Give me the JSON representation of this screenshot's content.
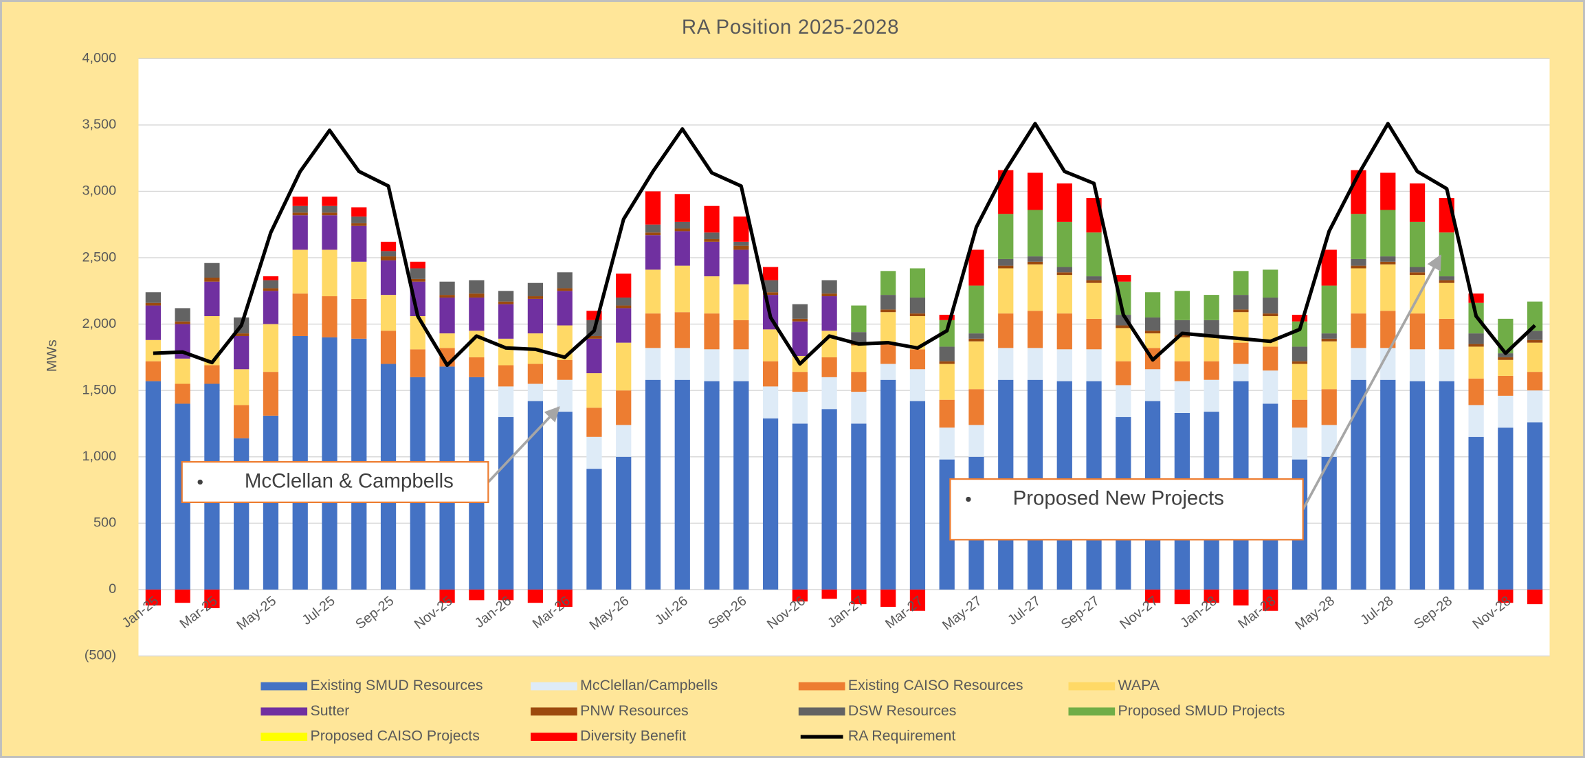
{
  "chart_data": {
    "type": "stacked_bar",
    "title": "RA Position 2025-2028",
    "y_label": "MWs",
    "categories": [
      "Jan-25",
      null,
      "Mar-25",
      null,
      "May-25",
      null,
      "Jul-25",
      null,
      "Sep-25",
      null,
      "Nov-25",
      null,
      "Jan-26",
      null,
      "Mar-26",
      null,
      "May-26",
      null,
      "Jul-26",
      null,
      "Sep-26",
      null,
      "Nov-26",
      null,
      "Jan-27",
      null,
      "Mar-27",
      null,
      "May-27",
      null,
      "Jul-27",
      null,
      "Sep-27",
      null,
      "Nov-27",
      null,
      "Jan-28",
      null,
      "Mar-28",
      null,
      "May-28",
      null,
      "Jul-28",
      null,
      "Sep-28",
      null,
      "Nov-28",
      null
    ],
    "ylim": [
      -500,
      4000
    ],
    "yticks": [
      {
        "value": -500,
        "label": "(500)"
      },
      0,
      500,
      {
        "value": 1000,
        "label": "1,000"
      },
      {
        "value": 1500,
        "label": "1,500"
      },
      {
        "value": 2000,
        "label": "2,000"
      },
      {
        "value": 2500,
        "label": "2,500"
      },
      {
        "value": 3000,
        "label": "3,000"
      },
      {
        "value": 3500,
        "label": "3,500"
      },
      {
        "value": 4000,
        "label": "4,000"
      }
    ],
    "grid": true,
    "legend": "bottom",
    "series": [
      {
        "name": "Existing SMUD Resources",
        "color": "#4472c4",
        "values": [
          1570,
          1400,
          1550,
          1140,
          1310,
          1910,
          1900,
          1890,
          1700,
          1600,
          1680,
          1600,
          1300,
          1420,
          1340,
          910,
          1000,
          1580,
          1580,
          1570,
          1570,
          1290,
          1250,
          1360,
          1250,
          1580,
          1420,
          980,
          1000,
          1580,
          1580,
          1570,
          1570,
          1300,
          1420,
          1330,
          1340,
          1570,
          1400,
          980,
          1000,
          1580,
          1580,
          1570,
          1570,
          1150,
          1220,
          1260
        ]
      },
      {
        "name": "McClellan/Campbells",
        "color": "#deebf7",
        "values": [
          0,
          0,
          0,
          0,
          0,
          0,
          0,
          0,
          0,
          0,
          0,
          0,
          230,
          130,
          240,
          240,
          240,
          240,
          240,
          240,
          240,
          240,
          240,
          240,
          240,
          120,
          240,
          240,
          240,
          240,
          240,
          240,
          240,
          240,
          240,
          240,
          240,
          130,
          250,
          240,
          240,
          240,
          240,
          240,
          240,
          240,
          240,
          240
        ]
      },
      {
        "name": "Existing CAISO Resources",
        "color": "#ed7d31",
        "values": [
          150,
          150,
          140,
          250,
          330,
          320,
          310,
          300,
          250,
          210,
          140,
          150,
          160,
          150,
          150,
          220,
          260,
          260,
          270,
          270,
          220,
          190,
          150,
          150,
          150,
          160,
          150,
          210,
          270,
          260,
          280,
          270,
          230,
          180,
          160,
          150,
          140,
          160,
          180,
          210,
          270,
          260,
          280,
          270,
          230,
          200,
          150,
          140
        ]
      },
      {
        "name": "WAPA",
        "color": "#ffd966",
        "values": [
          160,
          190,
          370,
          270,
          360,
          330,
          350,
          280,
          270,
          250,
          110,
          200,
          200,
          230,
          260,
          260,
          360,
          330,
          350,
          280,
          270,
          240,
          120,
          200,
          200,
          230,
          250,
          270,
          360,
          340,
          350,
          290,
          270,
          250,
          110,
          180,
          180,
          230,
          230,
          270,
          360,
          340,
          350,
          290,
          270,
          240,
          120,
          220
        ]
      },
      {
        "name": "Sutter",
        "color": "#7030a0",
        "values": [
          260,
          260,
          260,
          250,
          250,
          260,
          260,
          270,
          260,
          260,
          270,
          250,
          260,
          260,
          260,
          260,
          260,
          260,
          260,
          260,
          260,
          260,
          260,
          260,
          0,
          0,
          0,
          0,
          0,
          0,
          0,
          0,
          0,
          0,
          0,
          0,
          0,
          0,
          0,
          0,
          0,
          0,
          0,
          0,
          0,
          0,
          0,
          0
        ]
      },
      {
        "name": "PNW Resources",
        "color": "#9c4a0e",
        "values": [
          20,
          20,
          30,
          20,
          20,
          20,
          20,
          20,
          30,
          20,
          20,
          30,
          20,
          20,
          20,
          20,
          20,
          20,
          20,
          20,
          30,
          20,
          20,
          20,
          20,
          20,
          20,
          20,
          20,
          20,
          20,
          20,
          20,
          20,
          20,
          20,
          20,
          20,
          20,
          20,
          20,
          20,
          20,
          20,
          20,
          20,
          20,
          20
        ]
      },
      {
        "name": "DSW Resources",
        "color": "#636363",
        "values": [
          80,
          100,
          110,
          120,
          60,
          50,
          50,
          50,
          40,
          80,
          100,
          100,
          80,
          100,
          120,
          120,
          60,
          60,
          50,
          50,
          30,
          90,
          110,
          100,
          80,
          110,
          120,
          110,
          40,
          50,
          40,
          40,
          30,
          80,
          100,
          110,
          110,
          110,
          120,
          110,
          40,
          50,
          40,
          40,
          30,
          80,
          30,
          70
        ]
      },
      {
        "name": "Proposed SMUD Projects",
        "color": "#70ad47",
        "values": [
          0,
          0,
          0,
          0,
          0,
          0,
          0,
          0,
          0,
          0,
          0,
          0,
          0,
          0,
          0,
          0,
          0,
          0,
          0,
          0,
          0,
          0,
          0,
          0,
          200,
          180,
          220,
          200,
          360,
          340,
          350,
          340,
          330,
          250,
          190,
          220,
          190,
          180,
          210,
          190,
          360,
          340,
          350,
          340,
          330,
          230,
          260,
          220
        ]
      },
      {
        "name": "Proposed CAISO Projects",
        "color": "#ffff00",
        "values": [
          0,
          0,
          0,
          0,
          0,
          0,
          0,
          0,
          0,
          0,
          0,
          0,
          0,
          0,
          0,
          0,
          0,
          0,
          0,
          0,
          0,
          0,
          0,
          0,
          0,
          0,
          0,
          0,
          0,
          0,
          0,
          0,
          0,
          0,
          0,
          0,
          0,
          0,
          0,
          0,
          0,
          0,
          0,
          0,
          0,
          0,
          0,
          0
        ]
      },
      {
        "name": "Diversity Benefit",
        "color": "#ff0000",
        "values": [
          -120,
          -100,
          -140,
          0,
          30,
          70,
          70,
          70,
          70,
          50,
          -100,
          -80,
          -80,
          -100,
          -130,
          70,
          180,
          250,
          210,
          200,
          190,
          100,
          -90,
          -70,
          -110,
          -130,
          -160,
          40,
          270,
          330,
          280,
          290,
          260,
          50,
          -100,
          -110,
          -100,
          -120,
          -160,
          50,
          270,
          330,
          280,
          290,
          260,
          70,
          -100,
          -110
        ]
      },
      {
        "name": "RA Requirement",
        "color": "#000000",
        "type": "line",
        "values": [
          1780,
          1790,
          1710,
          1990,
          2690,
          3150,
          3460,
          3150,
          3040,
          2060,
          1690,
          1910,
          1820,
          1810,
          1750,
          1950,
          2790,
          3150,
          3470,
          3140,
          3040,
          2050,
          1700,
          1910,
          1850,
          1860,
          1820,
          1950,
          2730,
          3160,
          3510,
          3150,
          3060,
          2070,
          1730,
          1930,
          1910,
          1890,
          1870,
          1960,
          2700,
          3130,
          3510,
          3150,
          3020,
          2060,
          1780,
          1990
        ]
      }
    ],
    "annotations": [
      "McClellan & Campbells",
      "Proposed New Projects"
    ]
  }
}
